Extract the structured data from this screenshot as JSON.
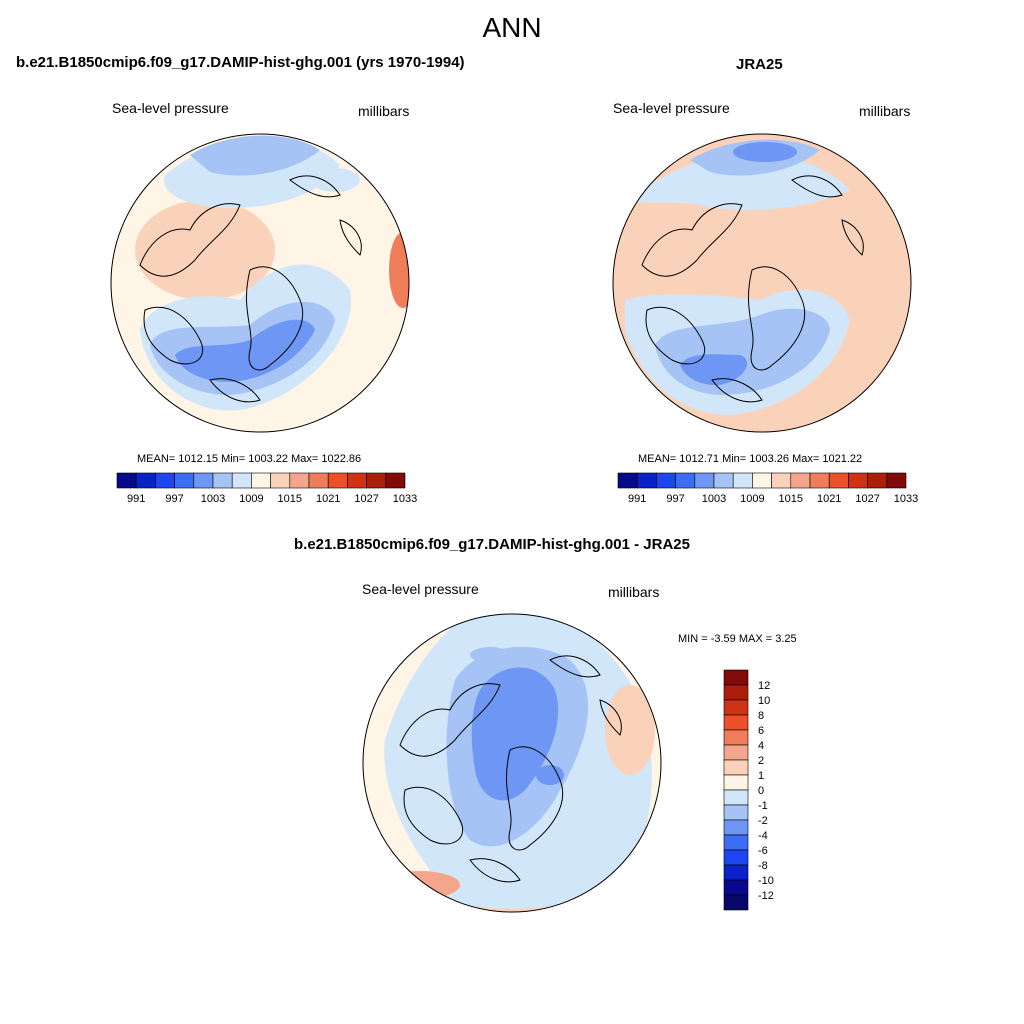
{
  "page_title": "ANN",
  "colors": {
    "coastline": "#000000",
    "palette_full": [
      "#08088c",
      "#0a22c8",
      "#1e46f0",
      "#3c6ef5",
      "#6e96f5",
      "#a5c3f5",
      "#d2e6fa",
      "#fff5e6",
      "#fad2b9",
      "#f5a58c",
      "#f07d5a",
      "#eb5028",
      "#d23214",
      "#aa1e0a",
      "#820a0a"
    ]
  },
  "panels": [
    {
      "id": "model",
      "title": "b.e21.B1850cmip6.f09_g17.DAMIP-hist-ghg.001 (yrs 1970-1994)",
      "variable": "Sea-level pressure",
      "units": "millibars",
      "stats": "MEAN= 1012.15  Min= 1003.22  Max= 1022.86",
      "colorbar_labels": [
        "991",
        "997",
        "1003",
        "1009",
        "1015",
        "1021",
        "1027",
        "1033"
      ]
    },
    {
      "id": "obs",
      "title": "JRA25",
      "variable": "Sea-level pressure",
      "units": "millibars",
      "stats": "MEAN= 1012.71  Min= 1003.26  Max= 1021.22",
      "colorbar_labels": [
        "991",
        "997",
        "1003",
        "1009",
        "1015",
        "1021",
        "1027",
        "1033"
      ]
    },
    {
      "id": "diff",
      "title": "b.e21.B1850cmip6.f09_g17.DAMIP-hist-ghg.001 - JRA25",
      "variable": "Sea-level pressure",
      "units": "millibars",
      "stats": "MIN =  -3.59 MAX =   3.25",
      "colorbar_labels": [
        "12",
        "10",
        "8",
        "6",
        "4",
        "2",
        "1",
        "0",
        "-1",
        "-2",
        "-4",
        "-6",
        "-8",
        "-10",
        "-12"
      ]
    }
  ]
}
